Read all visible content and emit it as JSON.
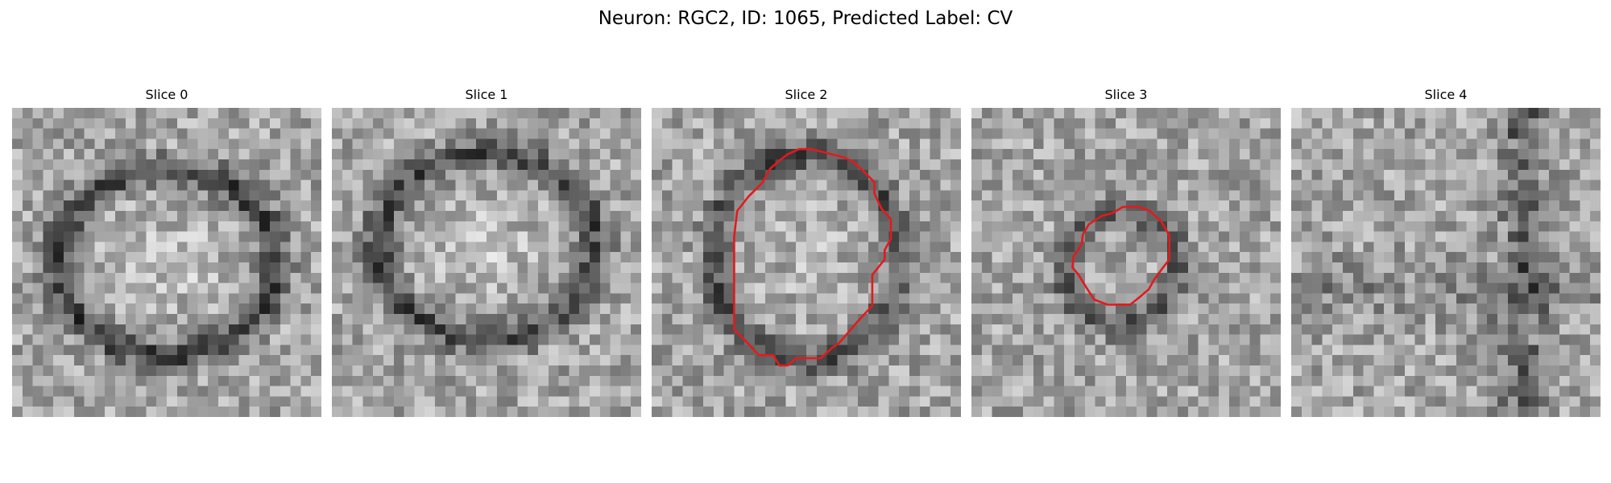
{
  "figure": {
    "title": "Neuron: RGC2, ID: 1065, Predicted Label: CV"
  },
  "panels": [
    {
      "title": "Slice 0",
      "structure": "ring",
      "has_contour": false
    },
    {
      "title": "Slice 1",
      "structure": "ring",
      "has_contour": false
    },
    {
      "title": "Slice 2",
      "structure": "ring",
      "has_contour": true
    },
    {
      "title": "Slice 3",
      "structure": "small-ring",
      "has_contour": true
    },
    {
      "title": "Slice 4",
      "structure": "noise",
      "has_contour": false
    }
  ],
  "colors": {
    "contour": "#e31a1c",
    "background": "#ffffff"
  }
}
